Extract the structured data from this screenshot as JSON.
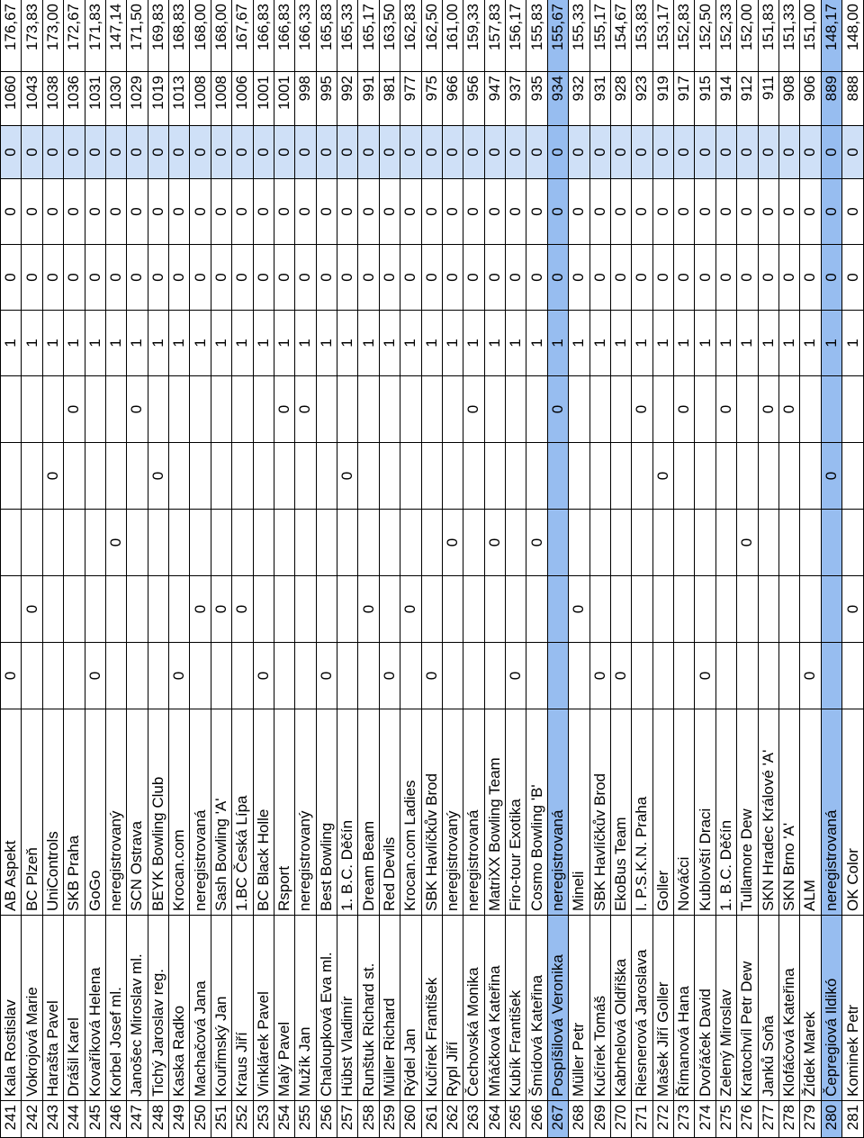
{
  "rows": [
    {
      "no": "241",
      "name": "Kala Rostislav",
      "club": "AB Aspekt",
      "z": [
        "0",
        "",
        "",
        "",
        "",
        "1",
        "0",
        "0",
        "0"
      ],
      "total": "1060",
      "avg": "176,67"
    },
    {
      "no": "242",
      "name": "Vokrojová Marie",
      "club": "BC Plzeň",
      "z": [
        "",
        "0",
        "",
        "",
        "",
        "1",
        "0",
        "0",
        "0"
      ],
      "total": "1043",
      "avg": "173,83"
    },
    {
      "no": "243",
      "name": "Harašta Pavel",
      "club": "UniControls",
      "z": [
        "",
        "",
        "",
        "0",
        "",
        "1",
        "0",
        "0",
        "0"
      ],
      "total": "1038",
      "avg": "173,00"
    },
    {
      "no": "244",
      "name": "Drášil Karel",
      "club": "SKB Praha",
      "z": [
        "",
        "",
        "",
        "",
        "0",
        "1",
        "0",
        "0",
        "0"
      ],
      "total": "1036",
      "avg": "172,67"
    },
    {
      "no": "245",
      "name": "Kovaříková Helena",
      "club": "GoGo",
      "z": [
        "0",
        "",
        "",
        "",
        "",
        "1",
        "0",
        "0",
        "0"
      ],
      "total": "1031",
      "avg": "171,83"
    },
    {
      "no": "246",
      "name": "Korbel Josef ml.",
      "club": "neregistrovaný",
      "z": [
        "",
        "",
        "0",
        "",
        "",
        "1",
        "0",
        "0",
        "0"
      ],
      "total": "1030",
      "avg": "147,14"
    },
    {
      "no": "247",
      "name": "Janošec Miroslav ml.",
      "club": "SCN Ostrava",
      "z": [
        "",
        "",
        "",
        "",
        "0",
        "1",
        "0",
        "0",
        "0"
      ],
      "total": "1029",
      "avg": "171,50"
    },
    {
      "no": "248",
      "name": "Tichý Jaroslav reg.",
      "club": "BEYK Bowling Club",
      "z": [
        "",
        "",
        "",
        "0",
        "",
        "1",
        "0",
        "0",
        "0"
      ],
      "total": "1019",
      "avg": "169,83"
    },
    {
      "no": "249",
      "name": "Kaska Radko",
      "club": "Krocan.com",
      "z": [
        "0",
        "",
        "",
        "",
        "",
        "1",
        "0",
        "0",
        "0"
      ],
      "total": "1013",
      "avg": "168,83"
    },
    {
      "no": "250",
      "name": "Machačová Jana",
      "club": "neregistrovaná",
      "z": [
        "",
        "0",
        "",
        "",
        "",
        "1",
        "0",
        "0",
        "0"
      ],
      "total": "1008",
      "avg": "168,00"
    },
    {
      "no": "251",
      "name": "Kouřimský Jan",
      "club": "Sash Bowling 'A'",
      "z": [
        "",
        "0",
        "",
        "",
        "",
        "1",
        "0",
        "0",
        "0"
      ],
      "total": "1008",
      "avg": "168,00"
    },
    {
      "no": "252",
      "name": "Kraus Jiří",
      "club": "1.BC Česká Lípa",
      "z": [
        "",
        "0",
        "",
        "",
        "",
        "1",
        "0",
        "0",
        "0"
      ],
      "total": "1006",
      "avg": "167,67"
    },
    {
      "no": "253",
      "name": "Vinklárek Pavel",
      "club": "BC Black Holle",
      "z": [
        "0",
        "",
        "",
        "",
        "",
        "1",
        "0",
        "0",
        "0"
      ],
      "total": "1001",
      "avg": "166,83"
    },
    {
      "no": "254",
      "name": "Malý Pavel",
      "club": "Rsport",
      "z": [
        "",
        "",
        "",
        "",
        "0",
        "1",
        "0",
        "0",
        "0"
      ],
      "total": "1001",
      "avg": "166,83"
    },
    {
      "no": "255",
      "name": "Mužík Jan",
      "club": "neregistrovaný",
      "z": [
        "",
        "",
        "",
        "",
        "0",
        "1",
        "0",
        "0",
        "0"
      ],
      "total": "998",
      "avg": "166,33"
    },
    {
      "no": "256",
      "name": "Chaloupková Eva ml.",
      "club": "Best Bowling",
      "z": [
        "0",
        "",
        "",
        "",
        "",
        "1",
        "0",
        "0",
        "0"
      ],
      "total": "995",
      "avg": "165,83"
    },
    {
      "no": "257",
      "name": "Hübst Vladimír",
      "club": "1. B.C. Děčín",
      "z": [
        "",
        "",
        "",
        "0",
        "",
        "1",
        "0",
        "0",
        "0"
      ],
      "total": "992",
      "avg": "165,33"
    },
    {
      "no": "258",
      "name": "Runštuk Richard st.",
      "club": "Dream Beam",
      "z": [
        "",
        "0",
        "",
        "",
        "",
        "1",
        "0",
        "0",
        "0"
      ],
      "total": "991",
      "avg": "165,17"
    },
    {
      "no": "259",
      "name": "Müller Richard",
      "club": "Red Devils",
      "z": [
        "0",
        "",
        "",
        "",
        "",
        "1",
        "0",
        "0",
        "0"
      ],
      "total": "981",
      "avg": "163,50"
    },
    {
      "no": "260",
      "name": "Rýdel Jan",
      "club": "Krocan.com Ladies",
      "z": [
        "",
        "0",
        "",
        "",
        "",
        "1",
        "0",
        "0",
        "0"
      ],
      "total": "977",
      "avg": "162,83"
    },
    {
      "no": "261",
      "name": "Kučírek František",
      "club": "SBK Havlíčkův Brod",
      "z": [
        "0",
        "",
        "",
        "",
        "",
        "1",
        "0",
        "0",
        "0"
      ],
      "total": "975",
      "avg": "162,50"
    },
    {
      "no": "262",
      "name": "Rypl Jiří",
      "club": "neregistrovaný",
      "z": [
        "",
        "",
        "0",
        "",
        "",
        "1",
        "0",
        "0",
        "0"
      ],
      "total": "966",
      "avg": "161,00"
    },
    {
      "no": "263",
      "name": "Čechovská Monika",
      "club": "neregistrovaná",
      "z": [
        "",
        "",
        "",
        "",
        "0",
        "1",
        "0",
        "0",
        "0"
      ],
      "total": "956",
      "avg": "159,33"
    },
    {
      "no": "264",
      "name": "Mňáčková Kateřina",
      "club": "MatriXX Bowling Team",
      "z": [
        "",
        "",
        "0",
        "",
        "",
        "1",
        "0",
        "0",
        "0"
      ],
      "total": "947",
      "avg": "157,83"
    },
    {
      "no": "265",
      "name": "Kubík František",
      "club": "Firo-tour Exotika",
      "z": [
        "0",
        "",
        "",
        "",
        "",
        "1",
        "0",
        "0",
        "0"
      ],
      "total": "937",
      "avg": "156,17"
    },
    {
      "no": "266",
      "name": "Šmídová Kateřina",
      "club": "Cosmo Bowling 'B'",
      "z": [
        "",
        "",
        "0",
        "",
        "",
        "1",
        "0",
        "0",
        "0"
      ],
      "total": "935",
      "avg": "155,83"
    },
    {
      "no": "267",
      "name": "Pospíšilová Veronika",
      "club": "neregistrovaná",
      "z": [
        "",
        "",
        "",
        "",
        "0",
        "1",
        "0",
        "0",
        "0"
      ],
      "total": "934",
      "avg": "155,67",
      "hl": true
    },
    {
      "no": "268",
      "name": "Müller Petr",
      "club": "Mineli",
      "z": [
        "",
        "0",
        "",
        "",
        "",
        "1",
        "0",
        "0",
        "0"
      ],
      "total": "932",
      "avg": "155,33"
    },
    {
      "no": "269",
      "name": "Kučírek Tomáš",
      "club": "SBK Havlíčkův Brod",
      "z": [
        "0",
        "",
        "",
        "",
        "",
        "1",
        "0",
        "0",
        "0"
      ],
      "total": "931",
      "avg": "155,17"
    },
    {
      "no": "270",
      "name": "Kabrhelová Oldřiška",
      "club": "EkoBus Team",
      "z": [
        "0",
        "",
        "",
        "",
        "",
        "1",
        "0",
        "0",
        "0"
      ],
      "total": "928",
      "avg": "154,67"
    },
    {
      "no": "271",
      "name": "Riesnerová Jaroslava",
      "club": "I. P.S.K.N. Praha",
      "z": [
        "",
        "",
        "",
        "",
        "0",
        "1",
        "0",
        "0",
        "0"
      ],
      "total": "923",
      "avg": "153,83"
    },
    {
      "no": "272",
      "name": "Mašek Jiří Goller",
      "club": "Goller",
      "z": [
        "",
        "",
        "",
        "0",
        "",
        "1",
        "0",
        "0",
        "0"
      ],
      "total": "919",
      "avg": "153,17"
    },
    {
      "no": "273",
      "name": "Římanová Hana",
      "club": "Nováčci",
      "z": [
        "",
        "",
        "",
        "",
        "0",
        "1",
        "0",
        "0",
        "0"
      ],
      "total": "917",
      "avg": "152,83"
    },
    {
      "no": "274",
      "name": "Dvořáček David",
      "club": "Kublovští Draci",
      "z": [
        "0",
        "",
        "",
        "",
        "",
        "1",
        "0",
        "0",
        "0"
      ],
      "total": "915",
      "avg": "152,50"
    },
    {
      "no": "275",
      "name": "Zelený Miroslav",
      "club": "1. B.C. Děčín",
      "z": [
        "",
        "",
        "",
        "",
        "0",
        "1",
        "0",
        "0",
        "0"
      ],
      "total": "914",
      "avg": "152,33"
    },
    {
      "no": "276",
      "name": "Kratochvíl Petr Dew",
      "club": "Tullamore Dew",
      "z": [
        "",
        "",
        "0",
        "",
        "",
        "1",
        "0",
        "0",
        "0"
      ],
      "total": "912",
      "avg": "152,00"
    },
    {
      "no": "277",
      "name": "Janků Soňa",
      "club": "SKN Hradec Králové 'A'",
      "z": [
        "",
        "",
        "",
        "",
        "0",
        "1",
        "0",
        "0",
        "0"
      ],
      "total": "911",
      "avg": "151,83"
    },
    {
      "no": "278",
      "name": "Klofáčová Kateřina",
      "club": "SKN Brno 'A'",
      "z": [
        "",
        "",
        "",
        "",
        "0",
        "1",
        "0",
        "0",
        "0"
      ],
      "total": "908",
      "avg": "151,33"
    },
    {
      "no": "279",
      "name": "Žídek Marek",
      "club": "ALM",
      "z": [
        "0",
        "",
        "",
        "",
        "",
        "1",
        "0",
        "0",
        "0"
      ],
      "total": "906",
      "avg": "151,00"
    },
    {
      "no": "280",
      "name": "Čepregiová Ildikó",
      "club": "neregistrovaná",
      "z": [
        "",
        "",
        "",
        "0",
        "",
        "1",
        "0",
        "0",
        "0"
      ],
      "total": "889",
      "avg": "148,17",
      "hl": true
    },
    {
      "no": "281",
      "name": "Kominek Petr",
      "club": "OK Color",
      "z": [
        "",
        "0",
        "",
        "",
        "",
        "1",
        "0",
        "0",
        "0"
      ],
      "total": "888",
      "avg": "148,00"
    }
  ]
}
